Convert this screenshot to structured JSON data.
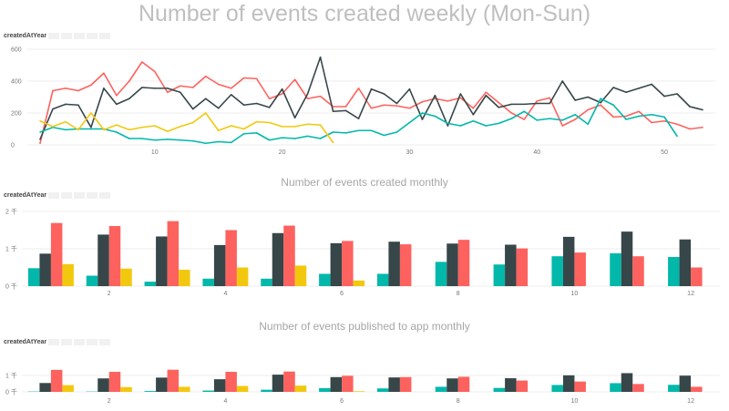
{
  "legend_label": "createdAtYear",
  "chart_data": [
    {
      "type": "line",
      "title": "Number of events created weekly (Mon-Sun)",
      "xlabel": "",
      "ylabel": "",
      "xlim": [
        0,
        54
      ],
      "ylim": [
        0,
        600
      ],
      "x_ticks": [
        10,
        20,
        30,
        40,
        50
      ],
      "y_ticks": [
        {
          "value": 0,
          "label": "0"
        },
        {
          "value": 200,
          "label": "200"
        },
        {
          "value": 400,
          "label": "400"
        },
        {
          "value": 600,
          "label": "600"
        }
      ],
      "grid": true,
      "series": [
        {
          "color": "#fd625e",
          "x_start": 1,
          "values": [
            10,
            340,
            355,
            340,
            375,
            450,
            310,
            400,
            520,
            460,
            330,
            370,
            360,
            430,
            380,
            355,
            420,
            415,
            290,
            320,
            410,
            290,
            305,
            240,
            240,
            355,
            230,
            250,
            245,
            230,
            270,
            290,
            275,
            295,
            230,
            330,
            265,
            200,
            160,
            275,
            295,
            120,
            160,
            220,
            250,
            175,
            180,
            210,
            140,
            150,
            130,
            100,
            110
          ]
        },
        {
          "color": "#374649",
          "x_start": 1,
          "values": [
            35,
            225,
            255,
            250,
            110,
            355,
            255,
            290,
            360,
            355,
            355,
            330,
            225,
            290,
            230,
            315,
            250,
            260,
            235,
            350,
            170,
            320,
            550,
            210,
            215,
            165,
            350,
            320,
            260,
            350,
            160,
            310,
            120,
            320,
            190,
            310,
            235,
            255,
            255,
            260,
            260,
            400,
            280,
            300,
            265,
            360,
            330,
            355,
            380,
            305,
            320,
            240,
            220
          ]
        },
        {
          "color": "#01b8aa",
          "x_start": 1,
          "values": [
            80,
            110,
            95,
            100,
            100,
            100,
            80,
            40,
            40,
            30,
            35,
            30,
            25,
            10,
            20,
            15,
            70,
            75,
            30,
            45,
            40,
            55,
            40,
            80,
            75,
            90,
            90,
            60,
            80,
            140,
            200,
            180,
            135,
            120,
            150,
            120,
            135,
            165,
            210,
            155,
            165,
            155,
            190,
            130,
            290,
            250,
            160,
            180,
            190,
            175,
            55
          ]
        },
        {
          "color": "#f2c80f",
          "x_start": 1,
          "values": [
            150,
            115,
            145,
            95,
            200,
            95,
            125,
            95,
            110,
            120,
            85,
            115,
            140,
            200,
            90,
            120,
            100,
            145,
            140,
            115,
            115,
            130,
            125,
            15
          ]
        }
      ]
    },
    {
      "type": "bar",
      "title": "Number of events created monthly",
      "xlabel": "",
      "ylabel": "",
      "ylim": [
        0,
        2000
      ],
      "categories": [
        1,
        2,
        3,
        4,
        5,
        6,
        7,
        8,
        9,
        10,
        11,
        12
      ],
      "x_tick_labels": {
        "2": "2",
        "4": "4",
        "6": "6",
        "8": "8",
        "10": "10",
        "12": "12"
      },
      "y_ticks": [
        {
          "value": 0,
          "label": "0 千"
        },
        {
          "value": 1000,
          "label": "1 千"
        },
        {
          "value": 2000,
          "label": "2 千"
        }
      ],
      "grid": true,
      "series": [
        {
          "color": "#01b8aa",
          "values": [
            480,
            280,
            120,
            200,
            200,
            330,
            330,
            650,
            580,
            800,
            880,
            780
          ]
        },
        {
          "color": "#374649",
          "values": [
            870,
            1380,
            1330,
            1100,
            1420,
            1150,
            1190,
            1140,
            1110,
            1320,
            1460,
            1250
          ]
        },
        {
          "color": "#fd625e",
          "values": [
            1690,
            1610,
            1740,
            1500,
            1620,
            1210,
            1120,
            1240,
            1010,
            900,
            800,
            500
          ]
        },
        {
          "color": "#f2c80f",
          "values": [
            590,
            470,
            440,
            500,
            550,
            150,
            0,
            0,
            0,
            0,
            0,
            0
          ]
        }
      ]
    },
    {
      "type": "bar",
      "title": "Number of events published to app monthly",
      "xlabel": "",
      "ylabel": "",
      "ylim": [
        0,
        1500
      ],
      "categories": [
        1,
        2,
        3,
        4,
        5,
        6,
        7,
        8,
        9,
        10,
        11,
        12
      ],
      "x_tick_labels": {
        "2": "2",
        "4": "4",
        "6": "6",
        "8": "8",
        "10": "10",
        "12": "12"
      },
      "y_ticks": [
        {
          "value": 0,
          "label": "0 千"
        },
        {
          "value": 1000,
          "label": "1 千"
        }
      ],
      "grid": true,
      "series": [
        {
          "color": "#01b8aa",
          "values": [
            20,
            20,
            50,
            80,
            130,
            230,
            210,
            310,
            240,
            420,
            530,
            430
          ]
        },
        {
          "color": "#374649",
          "values": [
            540,
            820,
            870,
            770,
            1050,
            900,
            880,
            820,
            830,
            1010,
            1140,
            990
          ]
        },
        {
          "color": "#fd625e",
          "values": [
            1340,
            1220,
            1350,
            1220,
            1240,
            980,
            900,
            920,
            690,
            630,
            480,
            310
          ]
        },
        {
          "color": "#f2c80f",
          "values": [
            410,
            290,
            310,
            360,
            380,
            40,
            0,
            0,
            0,
            0,
            0,
            0
          ]
        }
      ]
    }
  ]
}
